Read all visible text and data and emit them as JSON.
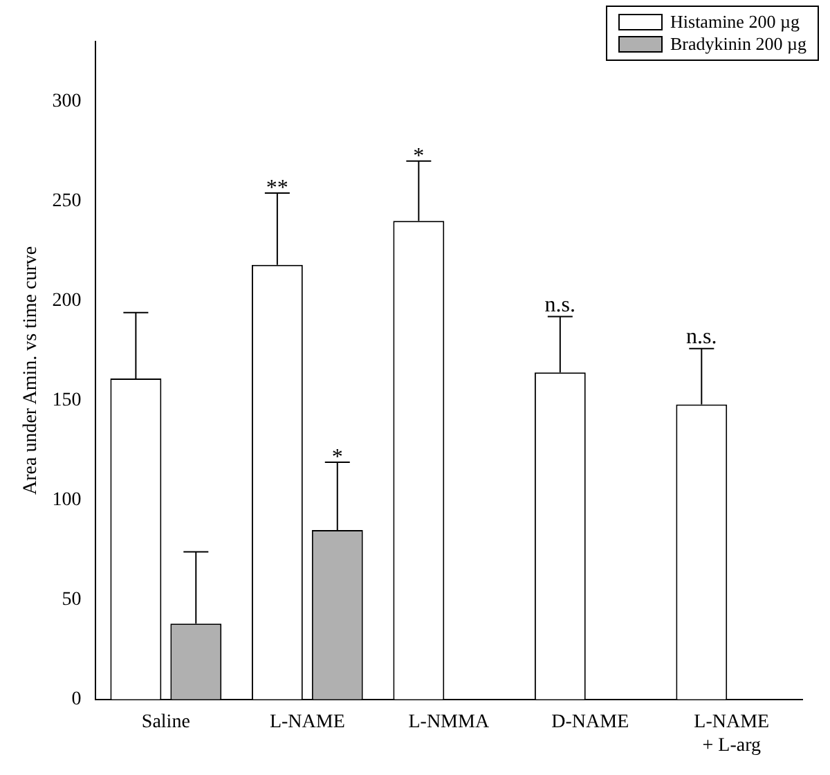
{
  "chart_data": {
    "type": "bar",
    "ylabel": "Area under Amin. vs time curve",
    "categories": [
      "Saline",
      "L-NAME",
      "L-NMMA",
      "D-NAME",
      "L-NAME\n+ L-arg"
    ],
    "series": [
      {
        "name": "Histamine 200 µg",
        "color": "#ffffff",
        "values": [
          161,
          218,
          240,
          164,
          148
        ],
        "errors": [
          33,
          36,
          30,
          28,
          28
        ],
        "value_labels": [
          null,
          "**",
          "*",
          "n.s.",
          "n.s."
        ]
      },
      {
        "name": "Bradykinin 200 µg",
        "color": "#b0b0b0",
        "values": [
          38,
          85,
          null,
          null,
          null
        ],
        "errors": [
          36,
          34,
          null,
          null,
          null
        ],
        "value_labels": [
          null,
          "*",
          null,
          null,
          null
        ]
      }
    ],
    "ylim": [
      0,
      330
    ],
    "yticks": [
      0,
      50,
      100,
      150,
      200,
      250,
      300
    ],
    "grid": false,
    "legend": "top right"
  }
}
